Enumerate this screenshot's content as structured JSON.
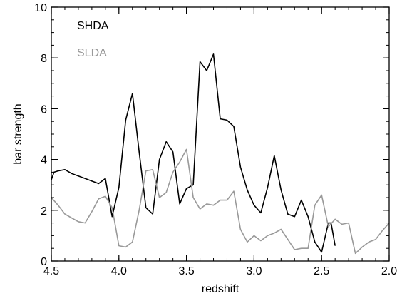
{
  "chart_data": {
    "type": "line",
    "title": "",
    "xlabel": "redshift",
    "ylabel": "bar strength",
    "xlim": [
      4.5,
      2.0
    ],
    "ylim": [
      0,
      10
    ],
    "x_reversed": true,
    "grid": false,
    "legend_position": "top-left",
    "x_ticks": [
      4.5,
      4.0,
      3.5,
      3.0,
      2.5,
      2.0
    ],
    "x_tick_labels": [
      "4.5",
      "4.0",
      "3.5",
      "3.0",
      "2.5",
      "2.0"
    ],
    "y_ticks": [
      0,
      2,
      4,
      6,
      8,
      10
    ],
    "y_tick_labels": [
      "0",
      "2",
      "4",
      "6",
      "8",
      "10"
    ],
    "series": [
      {
        "name": "SHDA",
        "color": "#000000",
        "points": [
          [
            4.5,
            3.2
          ],
          [
            4.48,
            3.5
          ],
          [
            4.45,
            3.55
          ],
          [
            4.4,
            3.6
          ],
          [
            4.35,
            3.45
          ],
          [
            4.3,
            3.35
          ],
          [
            4.25,
            3.25
          ],
          [
            4.2,
            3.15
          ],
          [
            4.15,
            3.05
          ],
          [
            4.1,
            3.25
          ],
          [
            4.05,
            1.75
          ],
          [
            4.0,
            2.9
          ],
          [
            3.95,
            5.55
          ],
          [
            3.9,
            6.6
          ],
          [
            3.85,
            4.3
          ],
          [
            3.8,
            2.1
          ],
          [
            3.75,
            1.85
          ],
          [
            3.7,
            4.0
          ],
          [
            3.65,
            4.7
          ],
          [
            3.6,
            4.3
          ],
          [
            3.55,
            2.25
          ],
          [
            3.5,
            2.85
          ],
          [
            3.45,
            3.0
          ],
          [
            3.4,
            7.85
          ],
          [
            3.35,
            7.5
          ],
          [
            3.3,
            8.15
          ],
          [
            3.25,
            5.6
          ],
          [
            3.2,
            5.55
          ],
          [
            3.15,
            5.3
          ],
          [
            3.1,
            3.7
          ],
          [
            3.05,
            2.8
          ],
          [
            3.0,
            2.2
          ],
          [
            2.95,
            1.9
          ],
          [
            2.9,
            2.9
          ],
          [
            2.85,
            4.15
          ],
          [
            2.8,
            2.8
          ],
          [
            2.75,
            1.85
          ],
          [
            2.7,
            1.75
          ],
          [
            2.65,
            2.4
          ],
          [
            2.6,
            1.75
          ],
          [
            2.55,
            0.75
          ],
          [
            2.5,
            0.35
          ],
          [
            2.45,
            1.5
          ],
          [
            2.43,
            1.5
          ],
          [
            2.4,
            0.6
          ]
        ]
      },
      {
        "name": "SLDA",
        "color": "#999999",
        "points": [
          [
            4.5,
            2.5
          ],
          [
            4.45,
            2.2
          ],
          [
            4.4,
            1.85
          ],
          [
            4.35,
            1.7
          ],
          [
            4.3,
            1.55
          ],
          [
            4.25,
            1.5
          ],
          [
            4.2,
            1.95
          ],
          [
            4.15,
            2.45
          ],
          [
            4.1,
            2.55
          ],
          [
            4.05,
            2.1
          ],
          [
            4.0,
            0.6
          ],
          [
            3.95,
            0.55
          ],
          [
            3.9,
            0.75
          ],
          [
            3.85,
            2.0
          ],
          [
            3.8,
            3.55
          ],
          [
            3.75,
            3.6
          ],
          [
            3.7,
            2.5
          ],
          [
            3.65,
            2.7
          ],
          [
            3.6,
            3.5
          ],
          [
            3.55,
            3.9
          ],
          [
            3.5,
            4.4
          ],
          [
            3.45,
            2.5
          ],
          [
            3.4,
            2.05
          ],
          [
            3.35,
            2.25
          ],
          [
            3.3,
            2.2
          ],
          [
            3.25,
            2.4
          ],
          [
            3.2,
            2.4
          ],
          [
            3.15,
            2.75
          ],
          [
            3.1,
            1.25
          ],
          [
            3.05,
            0.75
          ],
          [
            3.0,
            1.0
          ],
          [
            2.95,
            0.8
          ],
          [
            2.9,
            1.0
          ],
          [
            2.85,
            1.1
          ],
          [
            2.8,
            1.25
          ],
          [
            2.75,
            0.85
          ],
          [
            2.7,
            0.45
          ],
          [
            2.65,
            0.5
          ],
          [
            2.6,
            0.5
          ],
          [
            2.55,
            2.2
          ],
          [
            2.5,
            2.6
          ],
          [
            2.45,
            1.35
          ],
          [
            2.4,
            1.65
          ],
          [
            2.35,
            1.45
          ],
          [
            2.3,
            1.5
          ],
          [
            2.25,
            0.3
          ],
          [
            2.2,
            0.55
          ],
          [
            2.15,
            0.75
          ],
          [
            2.1,
            0.85
          ],
          [
            2.05,
            1.2
          ],
          [
            2.0,
            1.5
          ]
        ]
      }
    ]
  }
}
